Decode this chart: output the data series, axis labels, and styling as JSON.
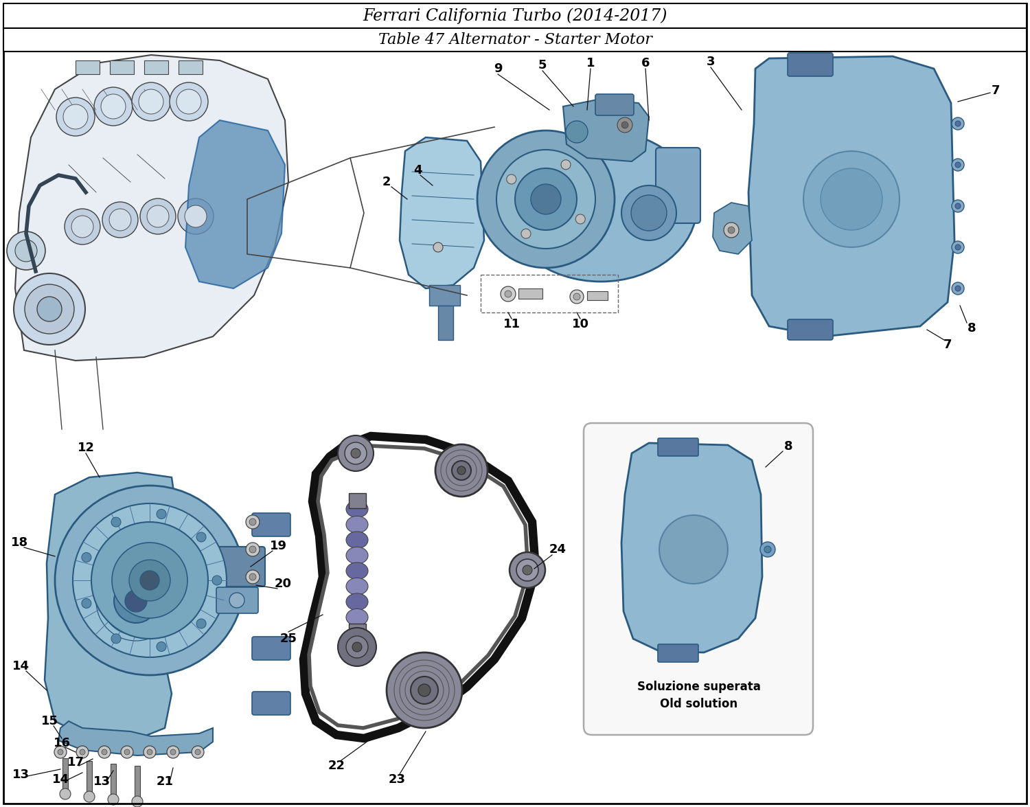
{
  "title1": "Ferrari California Turbo (2014-2017)",
  "title2": "Table 47 Alternator - Starter Motor",
  "bg": "#ffffff",
  "border": "#000000",
  "t1fs": 17,
  "t2fs": 16,
  "lfs": 13,
  "pc": "#8ab8d8",
  "pe": "#2a5a80",
  "pc2": "#a8cce0",
  "pc3": "#6898b8",
  "note1": "Soluzione superata",
  "note2": "Old solution",
  "notefs": 12
}
